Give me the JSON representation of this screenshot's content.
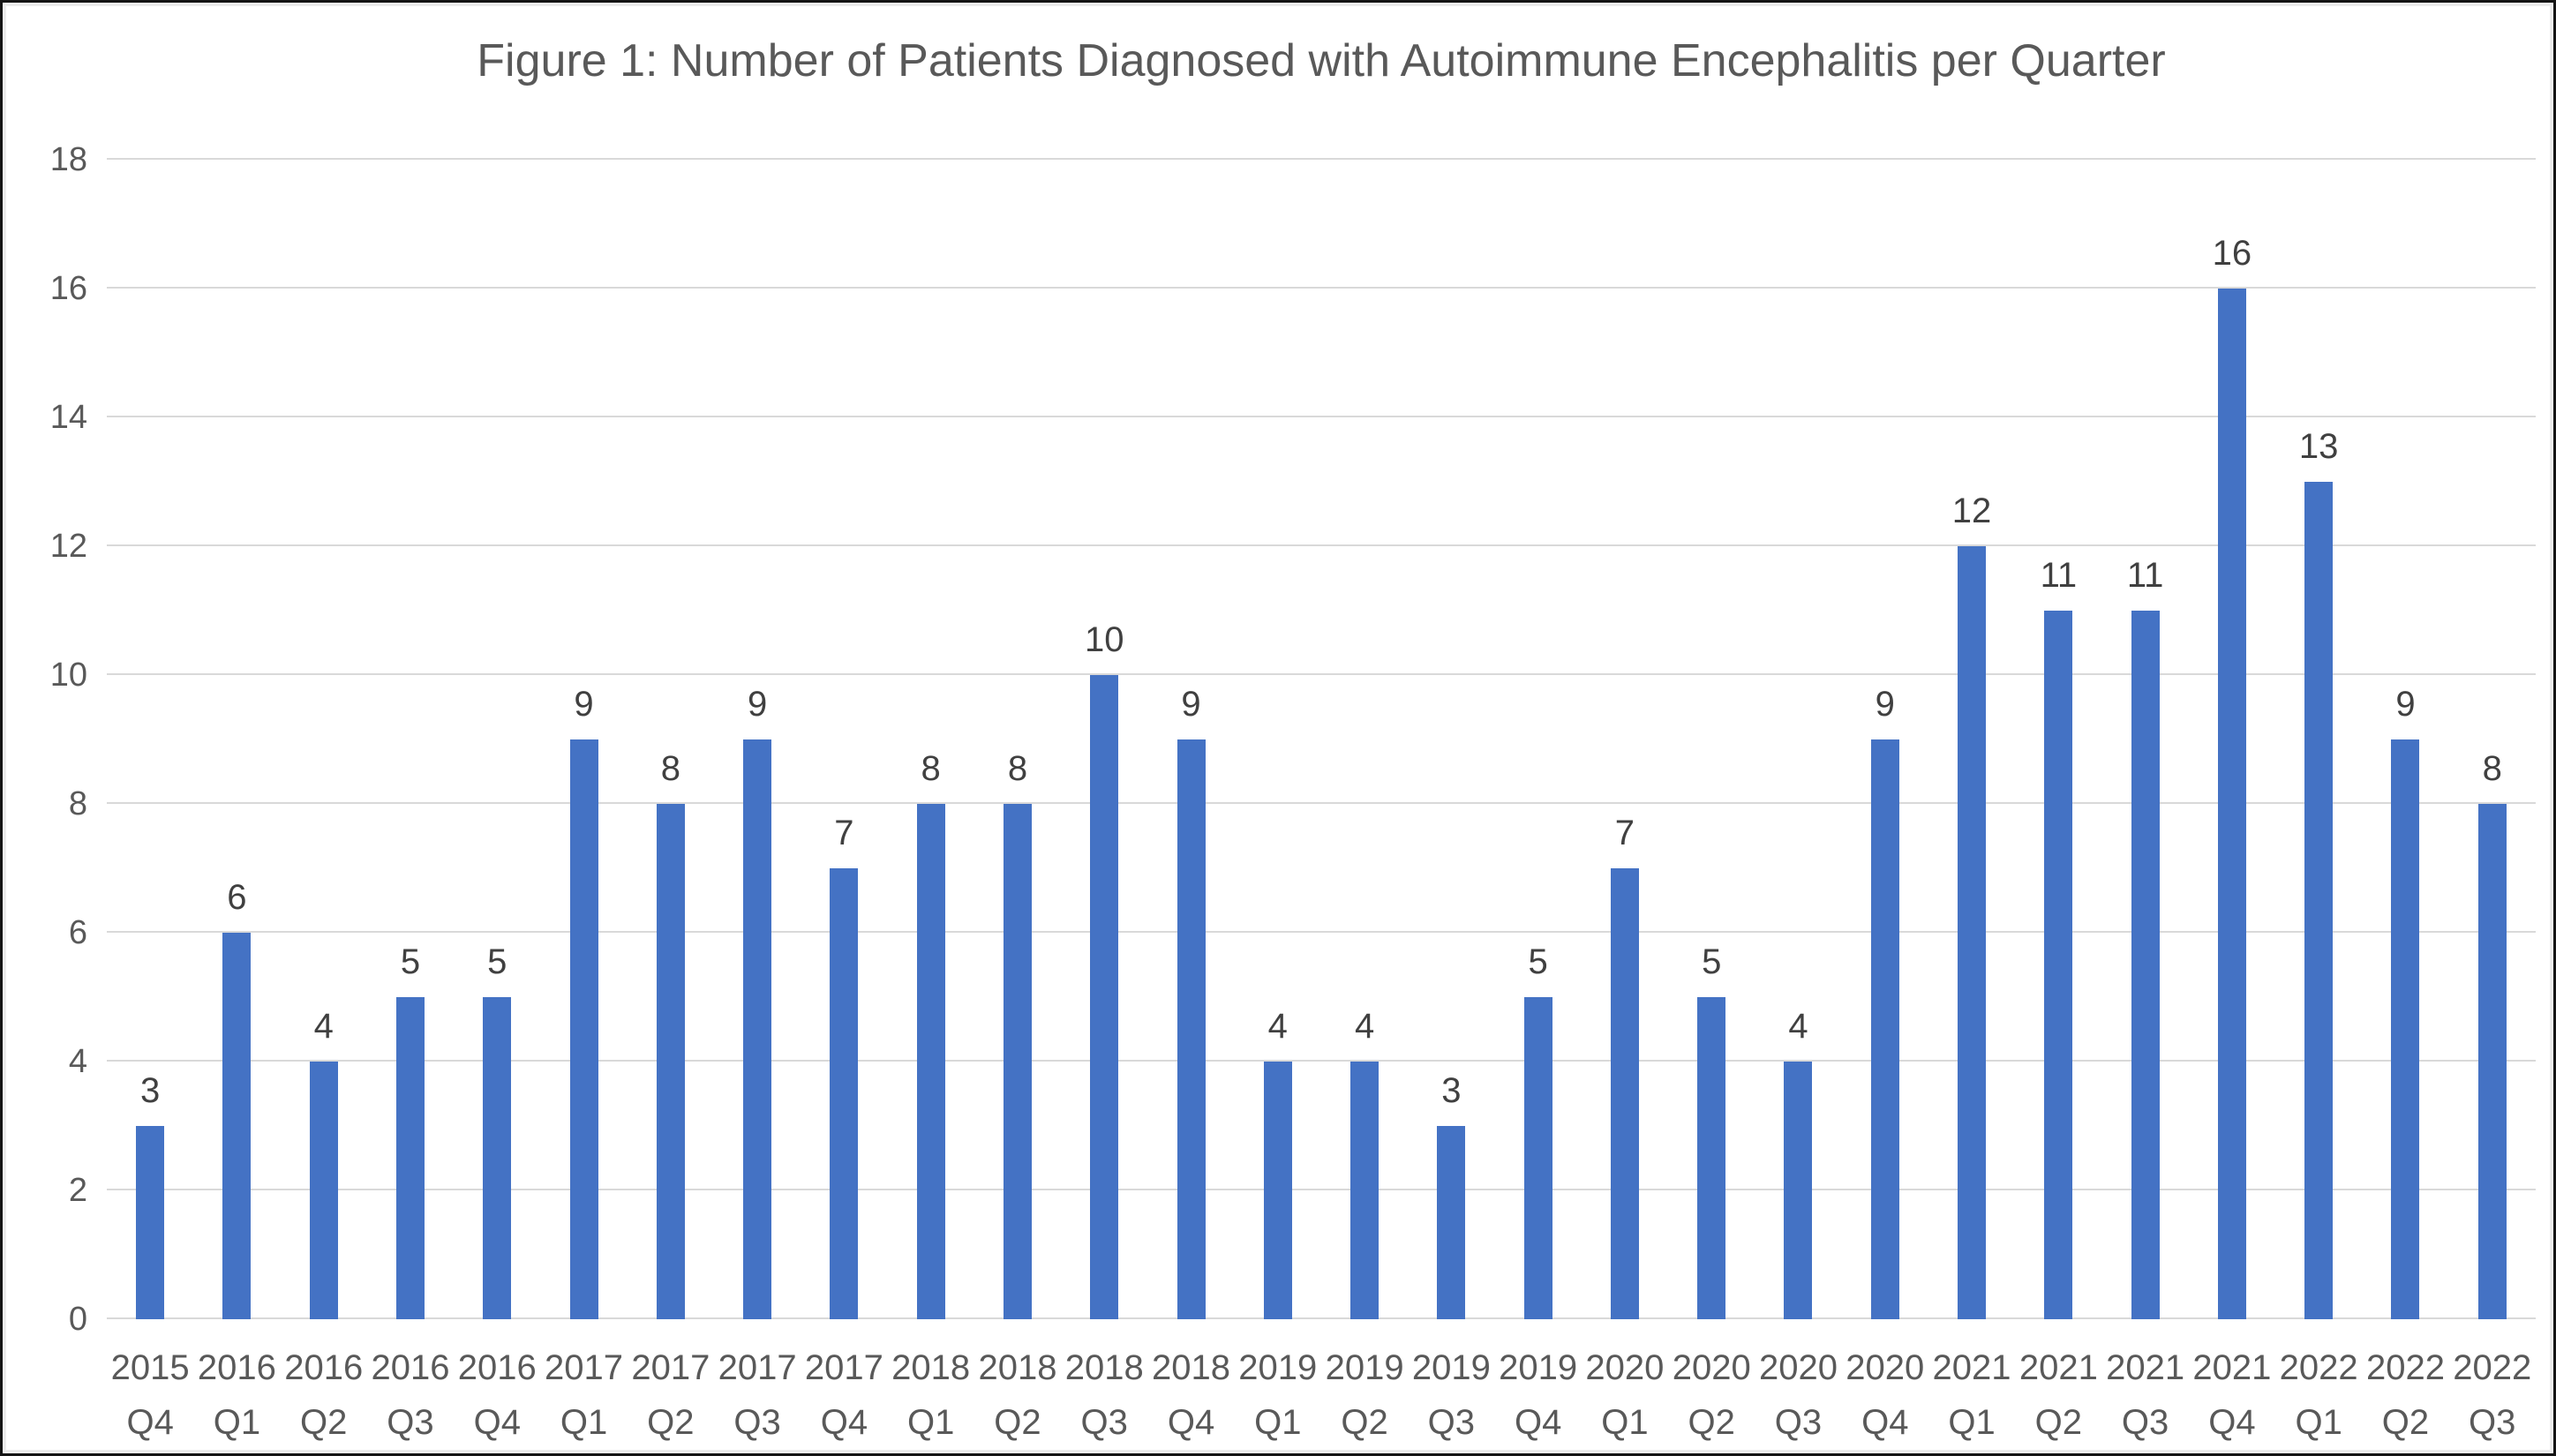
{
  "chart_data": {
    "type": "bar",
    "title": "Figure 1: Number of Patients Diagnosed with Autoimmune Encephalitis per Quarter",
    "categories": [
      "2015 Q4",
      "2016 Q1",
      "2016 Q2",
      "2016 Q3",
      "2016 Q4",
      "2017 Q1",
      "2017 Q2",
      "2017 Q3",
      "2017 Q4",
      "2018 Q1",
      "2018 Q2",
      "2018 Q3",
      "2018 Q4",
      "2019 Q1",
      "2019 Q2",
      "2019 Q3",
      "2019 Q4",
      "2020 Q1",
      "2020 Q2",
      "2020 Q3",
      "2020 Q4",
      "2021 Q1",
      "2021 Q2",
      "2021 Q3",
      "2021 Q4",
      "2022 Q1",
      "2022 Q2",
      "2022 Q3"
    ],
    "values": [
      3,
      6,
      4,
      5,
      5,
      9,
      8,
      9,
      7,
      8,
      8,
      10,
      9,
      4,
      4,
      3,
      5,
      7,
      5,
      4,
      9,
      12,
      11,
      11,
      16,
      13,
      9,
      8
    ],
    "xlabel": "",
    "ylabel": "",
    "ylim": [
      0,
      18
    ],
    "y_tick_step": 2,
    "y_tick_labels": [
      "0",
      "2",
      "4",
      "6",
      "8",
      "10",
      "12",
      "14",
      "16",
      "18"
    ],
    "grid": "horizontal-only",
    "legend_position": "none",
    "data_labels": "outside-end",
    "colors": {
      "bar": "#4472C4",
      "gridline": "#d9d9d9",
      "axis_text": "#595959",
      "title_text": "#595959",
      "data_label_text": "#404040",
      "background": "#ffffff"
    }
  }
}
